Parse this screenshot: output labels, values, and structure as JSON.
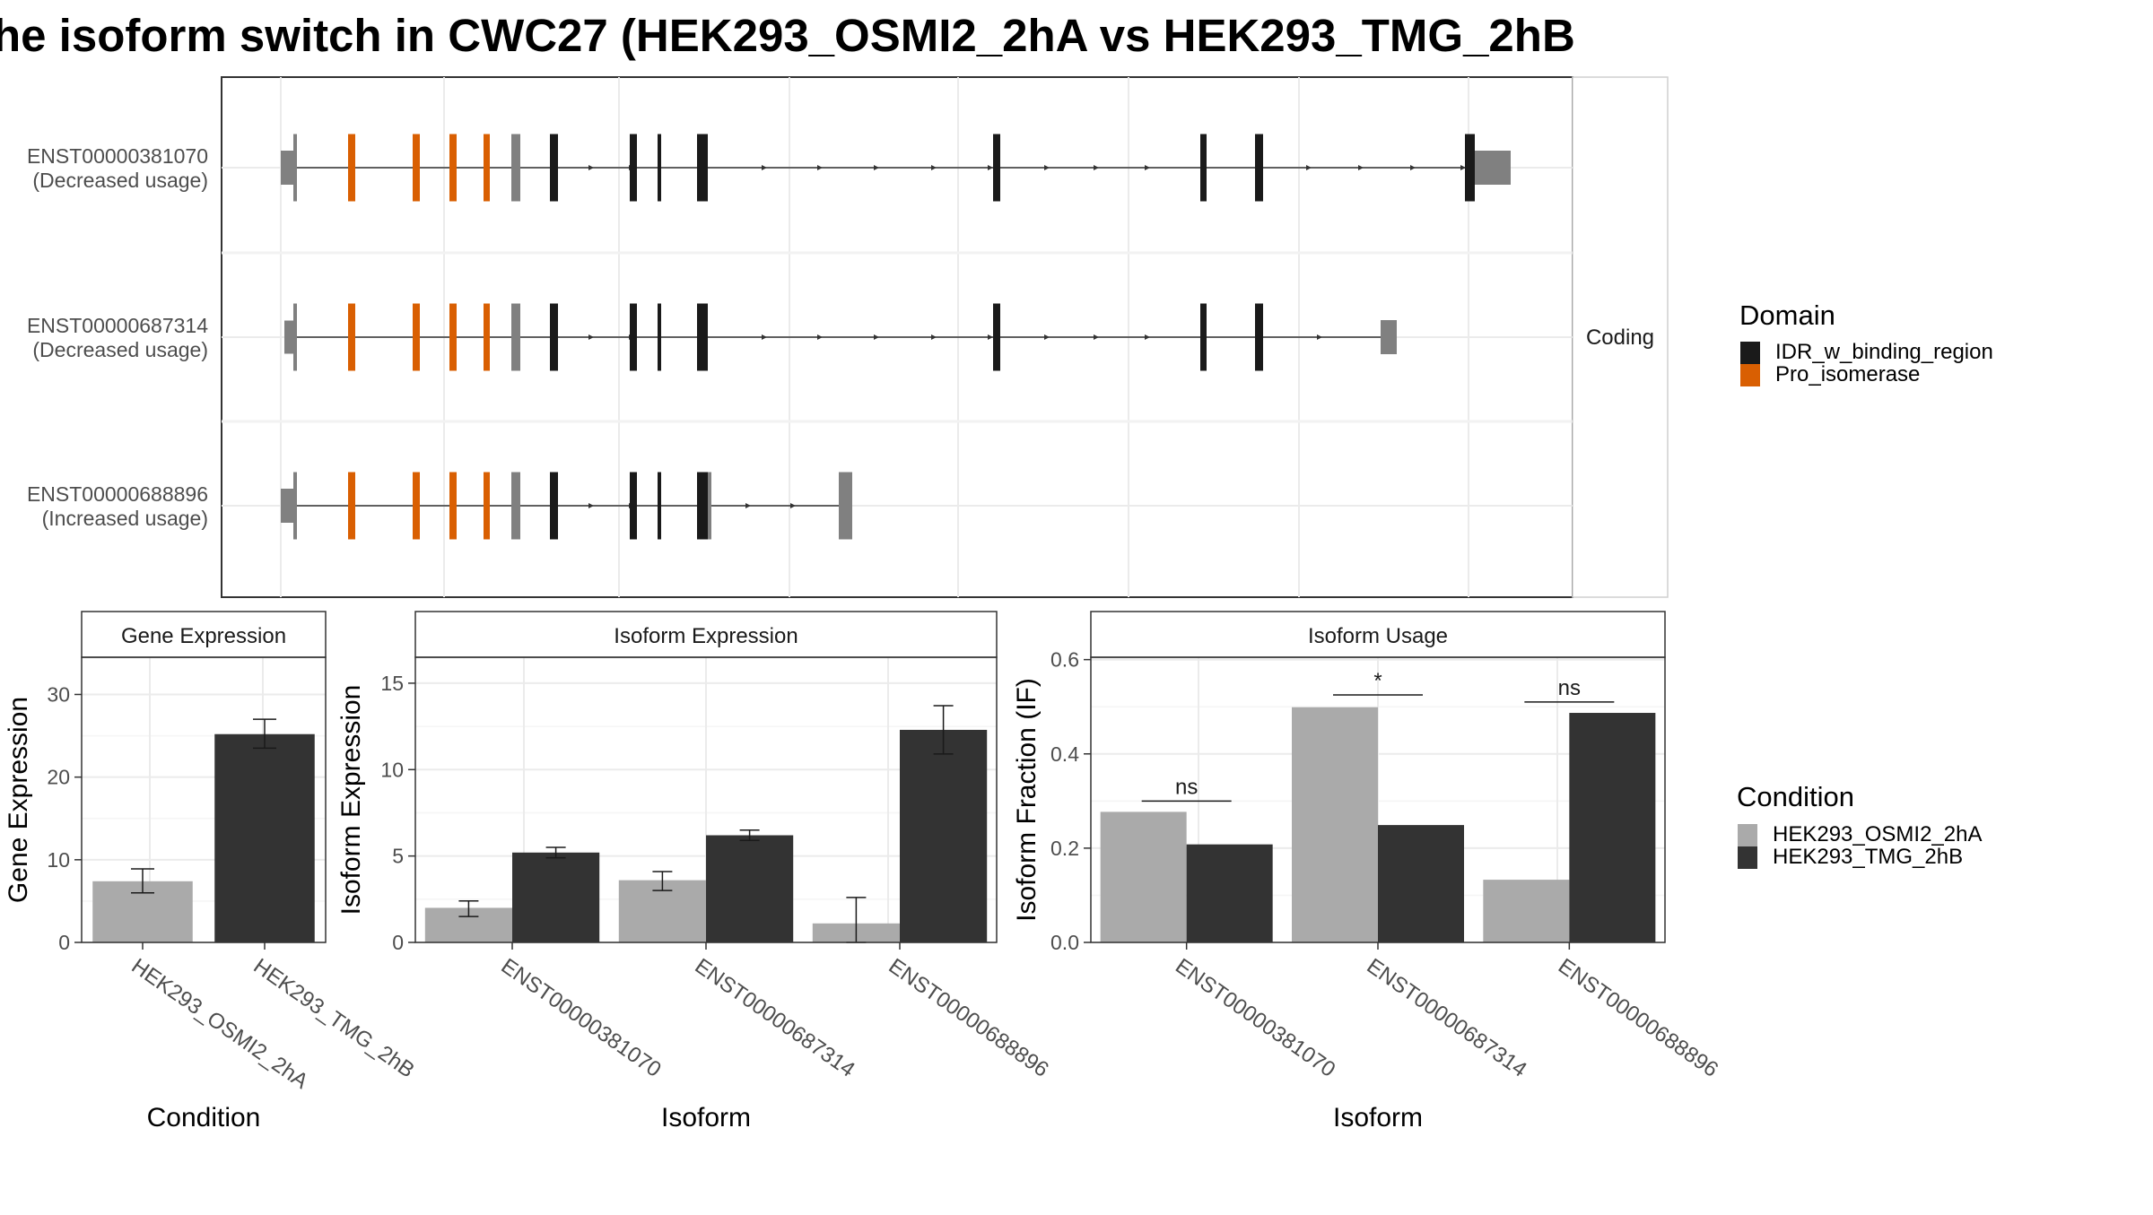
{
  "title": "he isoform switch in CWC27 (HEK293_OSMI2_2hA vs HEK293_TMG_2hB",
  "transcripts": [
    {
      "id": "ENST00000381070",
      "usage": "(Decreased usage)"
    },
    {
      "id": "ENST00000687314",
      "usage": "(Decreased usage)"
    },
    {
      "id": "ENST00000688896",
      "usage": "(Increased usage)"
    }
  ],
  "strip_label": "Coding",
  "domain_legend": {
    "title": "Domain",
    "items": [
      {
        "label": "IDR_w_binding_region",
        "color": "#1a1a1a"
      },
      {
        "label": "Pro_isomerase",
        "color": "#d95f02"
      }
    ]
  },
  "condition_legend": {
    "title": "Condition",
    "items": [
      {
        "label": "HEK293_OSMI2_2hA",
        "color": "#aaaaaa"
      },
      {
        "label": "HEK293_TMG_2hB",
        "color": "#333333"
      }
    ]
  },
  "colors": {
    "utr": "#808080",
    "idr": "#1a1a1a",
    "pro_isomerase": "#d95f02",
    "cond_a": "#aaaaaa",
    "cond_b": "#333333"
  },
  "chart_data": [
    {
      "type": "bar",
      "title": "Gene Expression",
      "xlabel": "Condition",
      "ylabel": "Gene Expression",
      "categories": [
        "HEK293_OSMI2_2hA",
        "HEK293_TMG_2hB"
      ],
      "values": [
        7.4,
        25.2
      ],
      "errors": [
        [
          6.0,
          8.9
        ],
        [
          23.5,
          27.0
        ]
      ],
      "ylim": [
        0,
        34.5
      ],
      "yticks": [
        0,
        10,
        20,
        30
      ]
    },
    {
      "type": "bar",
      "title": "Isoform Expression",
      "xlabel": "Isoform",
      "ylabel": "Isoform Expression",
      "categories": [
        "ENST00000381070",
        "ENST00000687314",
        "ENST00000688896"
      ],
      "series": [
        {
          "name": "HEK293_OSMI2_2hA",
          "values": [
            2.0,
            3.6,
            1.1
          ],
          "errors": [
            [
              1.5,
              2.4
            ],
            [
              3.0,
              4.1
            ],
            [
              0.0,
              2.6
            ]
          ]
        },
        {
          "name": "HEK293_TMG_2hB",
          "values": [
            5.2,
            6.2,
            12.3
          ],
          "errors": [
            [
              4.9,
              5.5
            ],
            [
              5.9,
              6.5
            ],
            [
              10.9,
              13.7
            ]
          ]
        }
      ],
      "ylim": [
        0,
        16.5
      ],
      "yticks": [
        0,
        5,
        10,
        15
      ]
    },
    {
      "type": "bar",
      "title": "Isoform Usage",
      "xlabel": "Isoform",
      "ylabel": "Isoform Fraction (IF)",
      "categories": [
        "ENST00000381070",
        "ENST00000687314",
        "ENST00000688896"
      ],
      "series": [
        {
          "name": "HEK293_OSMI2_2hA",
          "values": [
            0.277,
            0.499,
            0.133
          ]
        },
        {
          "name": "HEK293_TMG_2hB",
          "values": [
            0.208,
            0.249,
            0.487
          ]
        }
      ],
      "significance": [
        "ns",
        "*",
        "ns"
      ],
      "sig_heights": [
        0.3,
        0.525,
        0.51
      ],
      "ylim": [
        0,
        0.605
      ],
      "yticks": [
        0.0,
        0.2,
        0.4,
        0.6
      ],
      "ytick_labels": [
        "0.0",
        "0.2",
        "0.4",
        "0.6"
      ]
    }
  ]
}
